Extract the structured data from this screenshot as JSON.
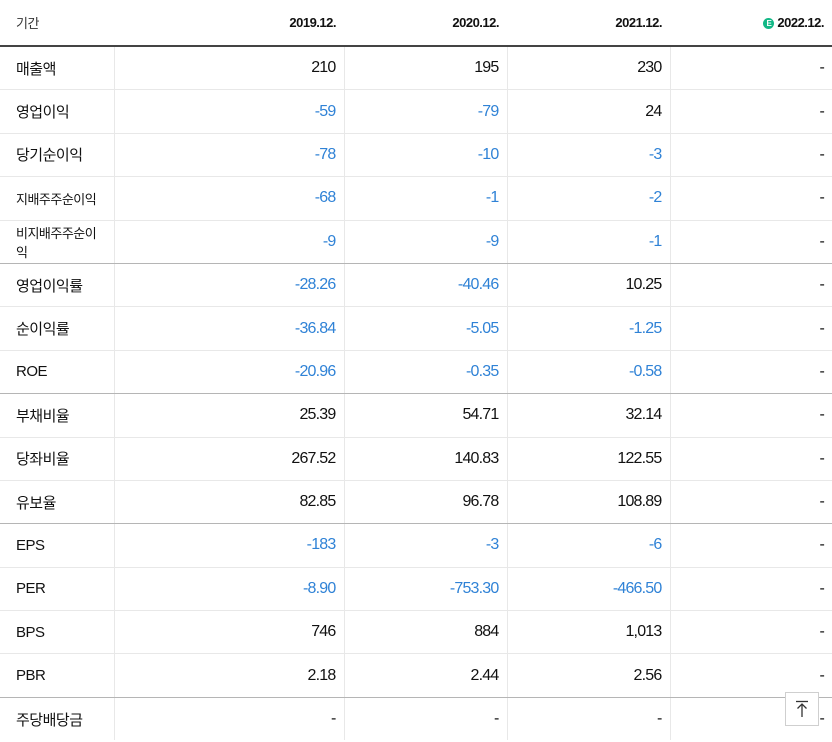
{
  "header": {
    "label": "기간",
    "periods": [
      "2019.12.",
      "2020.12.",
      "2021.12.",
      "2022.12."
    ],
    "estimate_badge": "E"
  },
  "rows": [
    {
      "label": "매출액",
      "values": [
        "210",
        "195",
        "230",
        "-"
      ]
    },
    {
      "label": "영업이익",
      "values": [
        "-59",
        "-79",
        "24",
        "-"
      ]
    },
    {
      "label": "당기순이익",
      "values": [
        "-78",
        "-10",
        "-3",
        "-"
      ]
    },
    {
      "label": "지배주주순이익",
      "values": [
        "-68",
        "-1",
        "-2",
        "-"
      ]
    },
    {
      "label": "비지배주주순이익",
      "values": [
        "-9",
        "-9",
        "-1",
        "-"
      ]
    },
    {
      "label": "영업이익률",
      "values": [
        "-28.26",
        "-40.46",
        "10.25",
        "-"
      ]
    },
    {
      "label": "순이익률",
      "values": [
        "-36.84",
        "-5.05",
        "-1.25",
        "-"
      ]
    },
    {
      "label": "ROE",
      "values": [
        "-20.96",
        "-0.35",
        "-0.58",
        "-"
      ]
    },
    {
      "label": "부채비율",
      "values": [
        "25.39",
        "54.71",
        "32.14",
        "-"
      ]
    },
    {
      "label": "당좌비율",
      "values": [
        "267.52",
        "140.83",
        "122.55",
        "-"
      ]
    },
    {
      "label": "유보율",
      "values": [
        "82.85",
        "96.78",
        "108.89",
        "-"
      ]
    },
    {
      "label": "EPS",
      "values": [
        "-183",
        "-3",
        "-6",
        "-"
      ]
    },
    {
      "label": "PER",
      "values": [
        "-8.90",
        "-753.30",
        "-466.50",
        "-"
      ]
    },
    {
      "label": "BPS",
      "values": [
        "746",
        "884",
        "1,013",
        "-"
      ]
    },
    {
      "label": "PBR",
      "values": [
        "2.18",
        "2.44",
        "2.56",
        "-"
      ]
    },
    {
      "label": "주당배당금",
      "values": [
        "-",
        "-",
        "-",
        "-"
      ]
    }
  ],
  "colors": {
    "negative": "#2f82d6",
    "estimate_badge": "#12b886"
  },
  "scroll_top_icon": "arrow-up-to-top-icon"
}
